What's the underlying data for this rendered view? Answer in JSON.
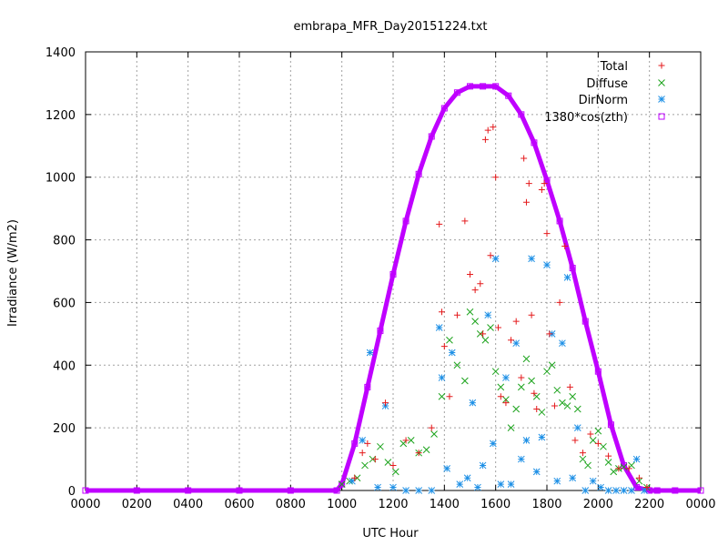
{
  "chart_data": {
    "type": "scatter",
    "title": "embrapa_MFR_Day20151224.txt",
    "xlabel": "UTC Hour",
    "ylabel": "Irradiance (W/m2)",
    "xlim": [
      0,
      24
    ],
    "ylim": [
      0,
      1400
    ],
    "grid": true,
    "legend_position": "top-right",
    "x_ticks": [
      {
        "value": 0,
        "label": "0000"
      },
      {
        "value": 2,
        "label": "0200"
      },
      {
        "value": 4,
        "label": "0400"
      },
      {
        "value": 6,
        "label": "0600"
      },
      {
        "value": 8,
        "label": "0800"
      },
      {
        "value": 10,
        "label": "1000"
      },
      {
        "value": 12,
        "label": "1200"
      },
      {
        "value": 14,
        "label": "1400"
      },
      {
        "value": 16,
        "label": "1600"
      },
      {
        "value": 18,
        "label": "1800"
      },
      {
        "value": 20,
        "label": "2000"
      },
      {
        "value": 22,
        "label": "2200"
      },
      {
        "value": 24,
        "label": "0000"
      }
    ],
    "y_ticks": [
      {
        "value": 0,
        "label": "0"
      },
      {
        "value": 200,
        "label": "200"
      },
      {
        "value": 400,
        "label": "400"
      },
      {
        "value": 600,
        "label": "600"
      },
      {
        "value": 800,
        "label": "800"
      },
      {
        "value": 1000,
        "label": "1000"
      },
      {
        "value": 1200,
        "label": "1200"
      },
      {
        "value": 1400,
        "label": "1400"
      }
    ],
    "series": [
      {
        "name": "Total",
        "marker": "plus",
        "color": "#e41a1c",
        "x": [
          10.5,
          10.8,
          11.0,
          11.3,
          11.7,
          12.0,
          12.5,
          13.0,
          13.5,
          13.8,
          13.9,
          14.0,
          14.2,
          14.5,
          14.8,
          15.0,
          15.2,
          15.4,
          15.5,
          15.6,
          15.7,
          15.8,
          15.9,
          16.0,
          16.1,
          16.2,
          16.4,
          16.6,
          16.8,
          17.0,
          17.1,
          17.2,
          17.3,
          17.4,
          17.5,
          17.6,
          17.8,
          17.9,
          18.0,
          18.1,
          18.3,
          18.5,
          18.7,
          18.9,
          19.1,
          19.4,
          19.7,
          20.0,
          20.4,
          20.8,
          21.2,
          21.6,
          21.9
        ],
        "y": [
          40,
          120,
          150,
          100,
          280,
          80,
          160,
          120,
          200,
          850,
          570,
          460,
          300,
          560,
          860,
          690,
          640,
          660,
          500,
          1120,
          1150,
          750,
          1160,
          1000,
          520,
          300,
          280,
          480,
          540,
          360,
          1060,
          920,
          980,
          560,
          310,
          260,
          960,
          980,
          820,
          500,
          270,
          600,
          780,
          330,
          160,
          120,
          180,
          150,
          110,
          70,
          70,
          40,
          10
        ]
      },
      {
        "name": "Diffuse",
        "marker": "cross",
        "color": "#1ca31c",
        "x": [
          10.0,
          10.3,
          10.6,
          10.9,
          11.2,
          11.5,
          11.8,
          12.1,
          12.4,
          12.7,
          13.0,
          13.3,
          13.6,
          13.9,
          14.2,
          14.5,
          14.8,
          15.0,
          15.2,
          15.4,
          15.6,
          15.8,
          16.0,
          16.2,
          16.4,
          16.6,
          16.8,
          17.0,
          17.2,
          17.4,
          17.6,
          17.8,
          18.0,
          18.2,
          18.4,
          18.6,
          18.8,
          19.0,
          19.2,
          19.4,
          19.6,
          19.8,
          20.0,
          20.2,
          20.4,
          20.6,
          20.8,
          21.0,
          21.3,
          21.6,
          21.9
        ],
        "y": [
          20,
          30,
          40,
          80,
          100,
          140,
          90,
          60,
          150,
          160,
          120,
          130,
          180,
          300,
          480,
          400,
          350,
          570,
          540,
          500,
          480,
          520,
          380,
          330,
          290,
          200,
          260,
          330,
          420,
          350,
          300,
          250,
          380,
          400,
          320,
          280,
          270,
          300,
          260,
          100,
          80,
          160,
          190,
          140,
          90,
          60,
          70,
          75,
          80,
          30,
          10
        ]
      },
      {
        "name": "DirNorm",
        "marker": "star",
        "color": "#1e90e6",
        "x": [
          10.4,
          10.8,
          11.1,
          11.4,
          11.7,
          12.0,
          12.5,
          13.0,
          13.5,
          13.8,
          13.9,
          14.1,
          14.3,
          14.6,
          14.9,
          15.1,
          15.3,
          15.5,
          15.7,
          15.9,
          16.0,
          16.2,
          16.4,
          16.6,
          16.8,
          17.0,
          17.2,
          17.4,
          17.6,
          17.8,
          18.0,
          18.2,
          18.4,
          18.6,
          18.8,
          19.0,
          19.2,
          19.5,
          19.8,
          20.1,
          20.4,
          20.7,
          21.0,
          21.3,
          21.5,
          21.8
        ],
        "y": [
          30,
          160,
          440,
          10,
          270,
          10,
          0,
          0,
          0,
          520,
          360,
          70,
          440,
          20,
          40,
          280,
          10,
          80,
          560,
          150,
          740,
          20,
          360,
          20,
          470,
          100,
          160,
          740,
          60,
          170,
          720,
          500,
          30,
          470,
          680,
          40,
          200,
          0,
          30,
          10,
          0,
          0,
          0,
          0,
          100,
          0
        ]
      },
      {
        "name": "1380*cos(zth)",
        "marker": "square",
        "color": "#bf00ff",
        "x": [
          0,
          2,
          4,
          6,
          8,
          9.8,
          10.0,
          10.5,
          11.0,
          11.5,
          12.0,
          12.5,
          13.0,
          13.5,
          14.0,
          14.5,
          15.0,
          15.5,
          16.0,
          16.5,
          17.0,
          17.5,
          18.0,
          18.5,
          19.0,
          19.5,
          20.0,
          20.5,
          21.0,
          21.5,
          22.0,
          22.3,
          23,
          24
        ],
        "y": [
          0,
          0,
          0,
          0,
          0,
          0,
          20,
          150,
          330,
          510,
          690,
          860,
          1010,
          1130,
          1220,
          1270,
          1290,
          1290,
          1290,
          1260,
          1200,
          1110,
          990,
          860,
          710,
          540,
          380,
          210,
          80,
          10,
          0,
          0,
          0,
          0
        ]
      }
    ]
  }
}
